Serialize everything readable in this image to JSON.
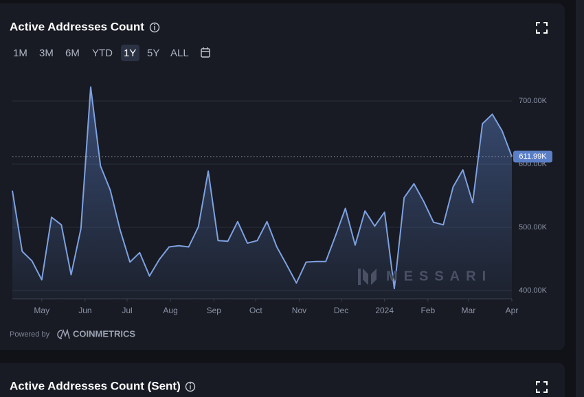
{
  "ui": {
    "title": "Active Addresses Count",
    "ranges": [
      "1M",
      "3M",
      "6M",
      "YTD",
      "1Y",
      "5Y",
      "ALL"
    ],
    "active_range": "1Y",
    "powered_by": "Powered by",
    "provider": "COINMETRICS",
    "watermark": "MESSARI",
    "next_title": "Active Addresses Count (Sent)"
  },
  "chart_data": {
    "type": "area",
    "x": [
      0,
      7,
      14,
      21,
      28,
      35,
      42,
      49,
      56,
      63,
      70,
      77,
      84,
      91,
      98,
      105,
      112,
      119,
      126,
      133,
      140,
      147,
      154,
      161,
      168,
      175,
      182,
      189,
      196,
      203,
      210,
      217,
      224,
      231,
      238,
      245,
      252,
      259,
      266,
      273,
      280,
      287,
      294,
      301,
      308,
      315,
      322,
      329,
      336,
      343,
      350,
      357
    ],
    "values": [
      558000,
      462000,
      447000,
      417000,
      516000,
      504000,
      425000,
      498000,
      722000,
      597000,
      559000,
      496000,
      445000,
      460000,
      423000,
      449000,
      469000,
      471000,
      469000,
      501000,
      589000,
      479000,
      478000,
      509000,
      475000,
      479000,
      509000,
      469000,
      441000,
      412000,
      445000,
      446000,
      446000,
      487000,
      530000,
      472000,
      526000,
      502000,
      524000,
      403000,
      547000,
      569000,
      541000,
      508000,
      504000,
      564000,
      591000,
      539000,
      664000,
      679000,
      653000,
      611990
    ],
    "color": "#7ea1e0",
    "xlim": [
      0,
      357
    ],
    "xticks": [
      {
        "value": 21,
        "label": "May"
      },
      {
        "value": 52,
        "label": "Jun"
      },
      {
        "value": 82,
        "label": "Jul"
      },
      {
        "value": 113,
        "label": "Aug"
      },
      {
        "value": 144,
        "label": "Sep"
      },
      {
        "value": 174,
        "label": "Oct"
      },
      {
        "value": 205,
        "label": "Nov"
      },
      {
        "value": 235,
        "label": "Dec"
      },
      {
        "value": 266,
        "label": "2024"
      },
      {
        "value": 297,
        "label": "Feb"
      },
      {
        "value": 326,
        "label": "Mar"
      },
      {
        "value": 357,
        "label": "Apr"
      }
    ],
    "ylim": [
      387000,
      746000
    ],
    "yticks": [
      {
        "value": 400000,
        "label": "400.00K"
      },
      {
        "value": 500000,
        "label": "500.00K"
      },
      {
        "value": 600000,
        "label": "600.00K"
      },
      {
        "value": 700000,
        "label": "700.00K"
      }
    ],
    "annotation": "611.99K",
    "grid": true
  }
}
